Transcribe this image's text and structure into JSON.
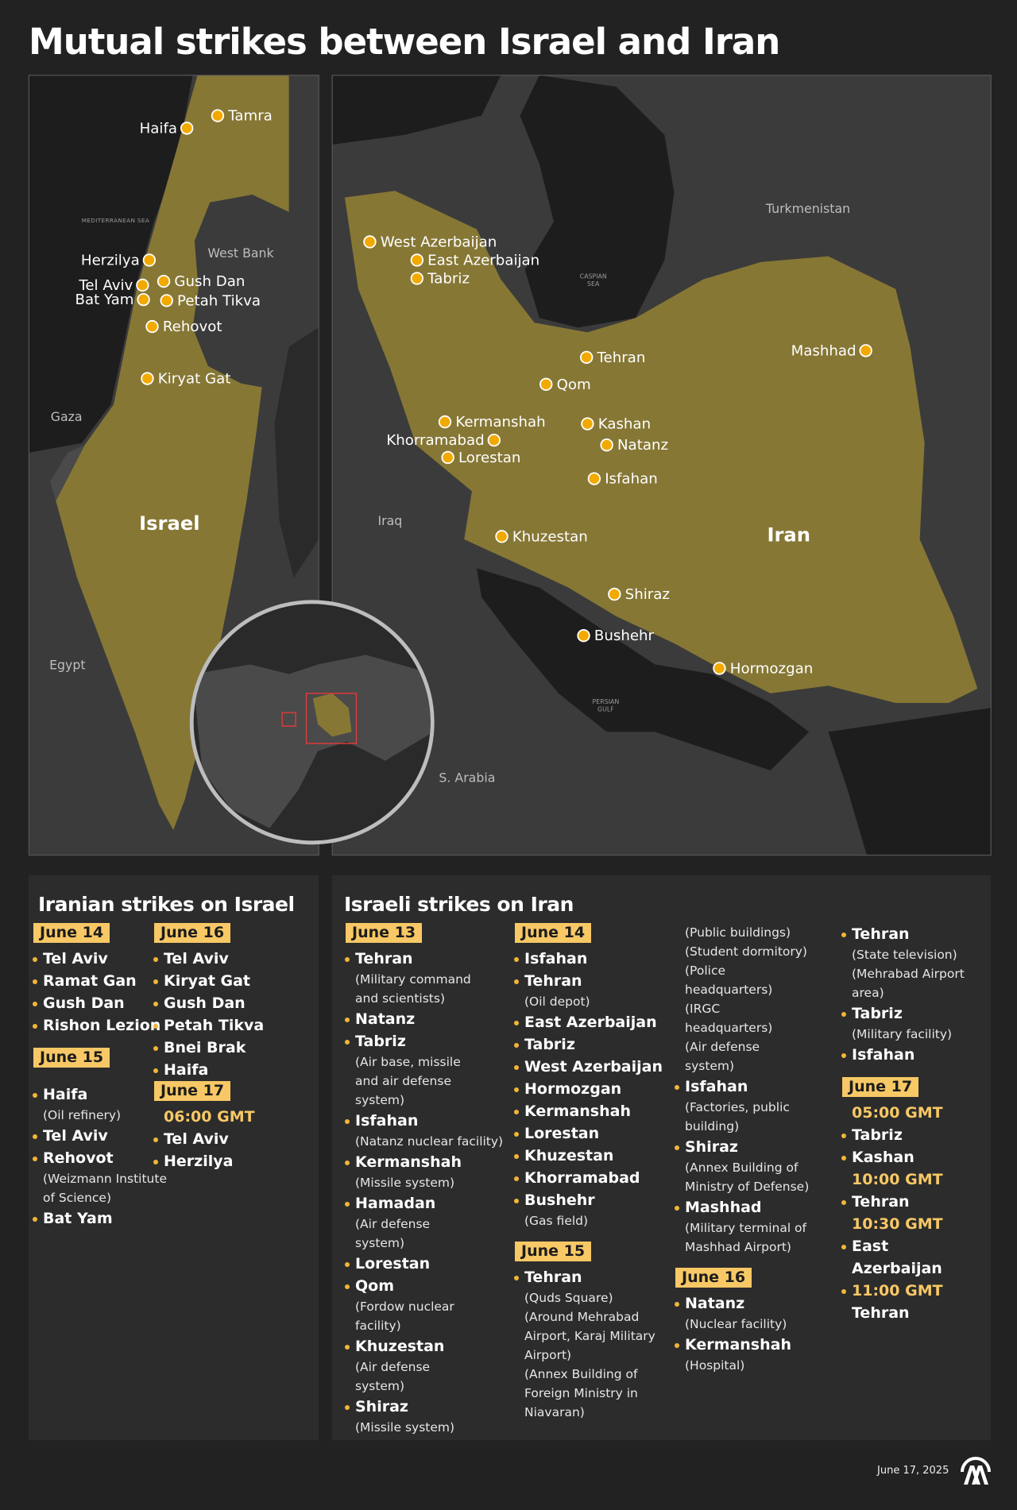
{
  "title": "Mutual strikes between Israel and Iran",
  "colors": {
    "background": "#222222",
    "panel": "#2c2c2c",
    "map_land": "#3b3b3b",
    "map_water": "#1d1d1d",
    "highlight_country": "#867735",
    "accent": "#f7c865",
    "marker": "#f2a900"
  },
  "israel_map": {
    "country_label": "Israel",
    "region_labels": [
      "MEDITERRANEAN SEA",
      "West Bank",
      "Gaza",
      "Egypt"
    ],
    "markers": [
      "Tamra",
      "Haifa",
      "Herzilya",
      "Tel Aviv",
      "Gush Dan",
      "Bat Yam",
      "Petah Tikva",
      "Rehovot",
      "Kiryat Gat"
    ]
  },
  "iran_map": {
    "country_label": "Iran",
    "region_labels": [
      "Turkmenistan",
      "CASPIAN\nSEA",
      "Iraq",
      "PERSIAN\nGULF",
      "S. Arabia"
    ],
    "markers": [
      "West Azerbaijan",
      "East Azerbaijan",
      "Tabriz",
      "Tehran",
      "Qom",
      "Mashhad",
      "Kermanshah",
      "Kashan",
      "Khorramabad",
      "Natanz",
      "Lorestan",
      "Isfahan",
      "Khuzestan",
      "Shiraz",
      "Bushehr",
      "Hormozgan"
    ]
  },
  "globe_icon": "globe-locator-icon",
  "iranian_strikes": {
    "title": "Iranian strikes on Israel",
    "columns": [
      [
        {
          "type": "date",
          "text": "June 14"
        },
        {
          "type": "item",
          "name": "Tel Aviv"
        },
        {
          "type": "item",
          "name": "Ramat Gan"
        },
        {
          "type": "item",
          "name": "Gush Dan"
        },
        {
          "type": "item",
          "name": "Rishon Lezion"
        },
        {
          "type": "gap"
        },
        {
          "type": "date",
          "text": "June 15"
        },
        {
          "type": "gap"
        },
        {
          "type": "item",
          "name": "Haifa",
          "note": "(Oil refinery)"
        },
        {
          "type": "item",
          "name": "Tel Aviv"
        },
        {
          "type": "item",
          "name": "Rehovot",
          "note": "(Weizmann Institute\nof Science)"
        },
        {
          "type": "item",
          "name": "Bat Yam"
        }
      ],
      [
        {
          "type": "date",
          "text": "June 16"
        },
        {
          "type": "item",
          "name": "Tel Aviv"
        },
        {
          "type": "item",
          "name": "Kiryat Gat"
        },
        {
          "type": "item",
          "name": "Gush Dan"
        },
        {
          "type": "item",
          "name": "Petah Tikva"
        },
        {
          "type": "item",
          "name": "Bnei Brak"
        },
        {
          "type": "item",
          "name": "Haifa"
        },
        {
          "type": "date",
          "text": "June 17"
        },
        {
          "type": "time",
          "text": "06:00 GMT"
        },
        {
          "type": "item",
          "name": "Tel Aviv"
        },
        {
          "type": "item",
          "name": "Herzilya"
        }
      ]
    ]
  },
  "israeli_strikes": {
    "title": "Israeli strikes on Iran",
    "columns": [
      [
        {
          "type": "date",
          "text": "June 13"
        },
        {
          "type": "item",
          "name": "Tehran",
          "note": "(Military command\nand scientists)"
        },
        {
          "type": "item",
          "name": "Natanz"
        },
        {
          "type": "item",
          "name": "Tabriz",
          "note": "(Air base, missile\nand air defense\nsystem)"
        },
        {
          "type": "item",
          "name": "Isfahan",
          "note": "(Natanz nuclear facility)"
        },
        {
          "type": "item",
          "name": "Kermanshah",
          "note": "(Missile system)"
        },
        {
          "type": "item",
          "name": "Hamadan",
          "note": "(Air defense\nsystem)"
        },
        {
          "type": "item",
          "name": "Lorestan"
        },
        {
          "type": "item",
          "name": "Qom",
          "note": "(Fordow nuclear\nfacility)"
        },
        {
          "type": "item",
          "name": "Khuzestan",
          "note": "(Air defense\nsystem)"
        },
        {
          "type": "item",
          "name": "Shiraz",
          "note": "(Missile system)"
        }
      ],
      [
        {
          "type": "date",
          "text": "June 14"
        },
        {
          "type": "item",
          "name": "Isfahan"
        },
        {
          "type": "item",
          "name": "Tehran",
          "note": "(Oil depot)"
        },
        {
          "type": "item",
          "name": "East Azerbaijan"
        },
        {
          "type": "item",
          "name": "Tabriz"
        },
        {
          "type": "item",
          "name": "West Azerbaijan"
        },
        {
          "type": "item",
          "name": "Hormozgan"
        },
        {
          "type": "item",
          "name": "Kermanshah"
        },
        {
          "type": "item",
          "name": "Lorestan"
        },
        {
          "type": "item",
          "name": "Khuzestan"
        },
        {
          "type": "item",
          "name": "Khorramabad"
        },
        {
          "type": "item",
          "name": "Bushehr",
          "note": "(Gas field)"
        },
        {
          "type": "gap"
        },
        {
          "type": "date",
          "text": "June 15"
        },
        {
          "type": "item",
          "name": "Tehran",
          "note": "(Quds Square)\n(Around Mehrabad\nAirport, Karaj Military\nAirport)\n(Annex Building of\nForeign Ministry in\nNiavaran)"
        }
      ],
      [
        {
          "type": "note",
          "note": "(Public buildings)\n(Student dormitory)\n(Police\nheadquarters)\n(IRGC\nheadquarters)\n(Air defense\nsystem)"
        },
        {
          "type": "item",
          "name": "Isfahan",
          "note": "(Factories, public\nbuilding)"
        },
        {
          "type": "item",
          "name": "Shiraz",
          "note": "(Annex Building of\nMinistry of Defense)"
        },
        {
          "type": "item",
          "name": "Mashhad",
          "note": "(Military terminal of\nMashhad Airport)"
        },
        {
          "type": "gap"
        },
        {
          "type": "date",
          "text": "June 16"
        },
        {
          "type": "item",
          "name": "Natanz",
          "note": "(Nuclear facility)"
        },
        {
          "type": "item",
          "name": "Kermanshah",
          "note": "(Hospital)"
        }
      ],
      [
        {
          "type": "item",
          "name": "Tehran",
          "note": "(State television)\n(Mehrabad Airport\narea)"
        },
        {
          "type": "item",
          "name": "Tabriz",
          "note": "(Military facility)"
        },
        {
          "type": "item",
          "name": "Isfahan"
        },
        {
          "type": "gap"
        },
        {
          "type": "date",
          "text": "June 17"
        },
        {
          "type": "time",
          "text": "05:00 GMT"
        },
        {
          "type": "item",
          "name": "Tabriz"
        },
        {
          "type": "item",
          "name": "Kashan"
        },
        {
          "type": "time",
          "text": "10:00 GMT"
        },
        {
          "type": "item",
          "name": "Tehran"
        },
        {
          "type": "time",
          "text": "10:30 GMT"
        },
        {
          "type": "item",
          "name": "East"
        },
        {
          "type": "item_nobullet",
          "name": "Azerbaijan"
        },
        {
          "type": "timeitem",
          "name": "11:00 GMT"
        },
        {
          "type": "item_nobullet",
          "name": "Tehran"
        }
      ]
    ]
  },
  "footer": {
    "date": "June 17, 2025",
    "logo_text": "AA"
  }
}
